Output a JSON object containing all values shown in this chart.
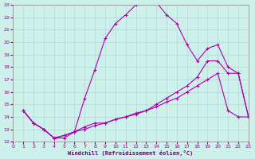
{
  "xlabel": "Windchill (Refroidissement éolien,°C)",
  "background_color": "#cef0eb",
  "grid_color": "#b0d8d4",
  "line_color": "#aa00aa",
  "xmin": 0,
  "xmax": 23,
  "ymin": 12,
  "ymax": 23,
  "line1_x": [
    1,
    2,
    3,
    4,
    5,
    6,
    7,
    8,
    9,
    10,
    11,
    12,
    13,
    14,
    15,
    16,
    17,
    18,
    19,
    20,
    21,
    22,
    23
  ],
  "line1_y": [
    14.5,
    13.5,
    13.0,
    12.3,
    12.3,
    12.8,
    15.5,
    17.8,
    20.3,
    21.5,
    22.2,
    23.0,
    23.2,
    23.2,
    22.2,
    21.5,
    19.8,
    18.5,
    19.5,
    19.8,
    18.0,
    17.5,
    14.0
  ],
  "line2_x": [
    1,
    2,
    3,
    4,
    5,
    6,
    7,
    8,
    9,
    10,
    11,
    12,
    13,
    14,
    15,
    16,
    17,
    18,
    19,
    20,
    21,
    22,
    23
  ],
  "line2_y": [
    14.5,
    13.5,
    13.0,
    12.3,
    12.5,
    12.8,
    13.2,
    13.5,
    13.5,
    13.8,
    14.0,
    14.3,
    14.5,
    15.0,
    15.5,
    16.0,
    16.5,
    17.2,
    18.5,
    18.5,
    17.5,
    17.5,
    14.0
  ],
  "line3_x": [
    1,
    2,
    3,
    4,
    5,
    6,
    7,
    8,
    9,
    10,
    11,
    12,
    13,
    14,
    15,
    16,
    17,
    18,
    19,
    20,
    21,
    22,
    23
  ],
  "line3_y": [
    14.5,
    13.5,
    13.0,
    12.3,
    12.5,
    12.8,
    13.0,
    13.3,
    13.5,
    13.8,
    14.0,
    14.2,
    14.5,
    14.8,
    15.2,
    15.5,
    16.0,
    16.5,
    17.0,
    17.5,
    14.5,
    14.0,
    14.0
  ]
}
